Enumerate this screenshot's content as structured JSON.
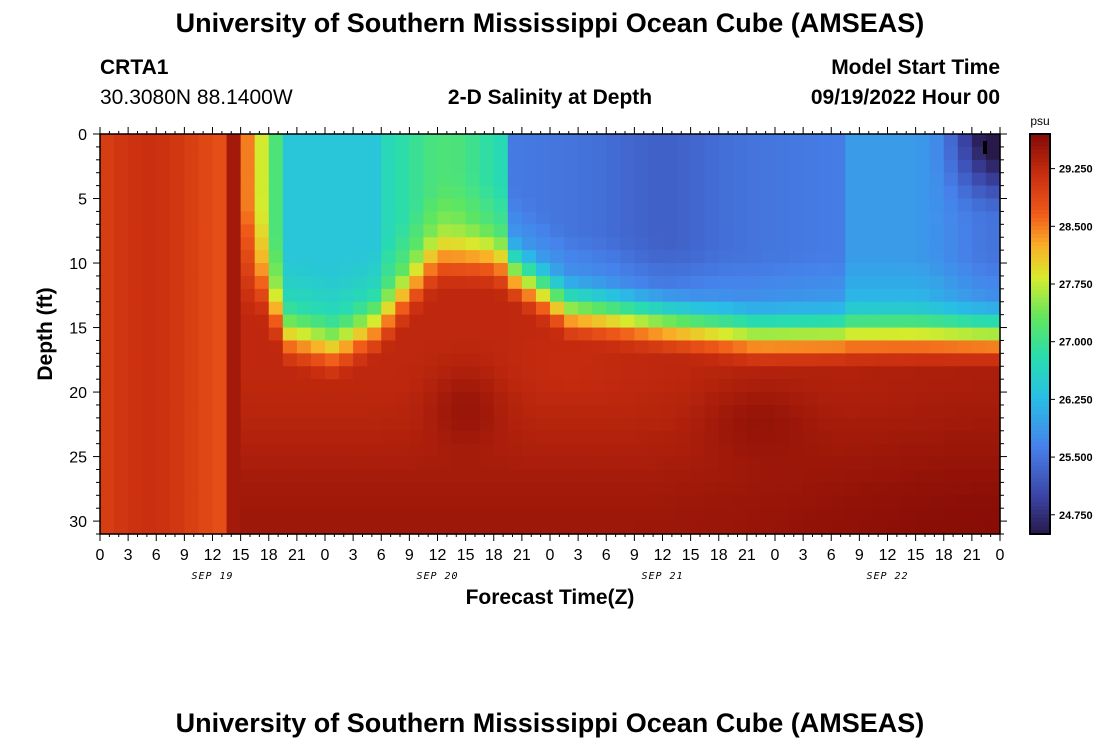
{
  "page": {
    "title": "University of Southern Mississippi Ocean Cube (AMSEAS)",
    "footer_title": "University of Southern Mississippi Ocean Cube (AMSEAS)",
    "station_id": "CRTA1",
    "station_coords": "30.3080N  88.1400W",
    "plot_title": "2-D Salinity at Depth",
    "model_start_label": "Model Start Time",
    "model_start_value": "09/19/2022 Hour 00"
  },
  "chart_data": {
    "type": "heatmap",
    "title": "2-D Salinity at Depth",
    "xlabel": "Forecast Time(Z)",
    "ylabel": "Depth (ft)",
    "x_range_hours": [
      0,
      96
    ],
    "y_range_ft": [
      0,
      31
    ],
    "y_ticks": [
      0,
      5,
      10,
      15,
      20,
      25,
      30
    ],
    "x_tick_step_hours": 3,
    "x_tick_labels": [
      "0",
      "3",
      "6",
      "9",
      "12",
      "15",
      "18",
      "21",
      "0",
      "3",
      "6",
      "9",
      "12",
      "15",
      "18",
      "21",
      "0",
      "3",
      "6",
      "9",
      "12",
      "15",
      "18",
      "21",
      "0",
      "3",
      "6",
      "9",
      "12",
      "15",
      "18",
      "21",
      "0"
    ],
    "day_labels": [
      {
        "label": "SEP 19",
        "hour": 12
      },
      {
        "label": "SEP 20",
        "hour": 36
      },
      {
        "label": "SEP 21",
        "hour": 60
      },
      {
        "label": "SEP 22",
        "hour": 84
      }
    ],
    "colorbar": {
      "unit": "psu",
      "min": 24.5,
      "max": 29.7,
      "ticks": [
        "29.250",
        "28.500",
        "27.750",
        "27.000",
        "26.250",
        "25.500",
        "24.750"
      ],
      "tick_values": [
        29.25,
        28.5,
        27.75,
        27.0,
        26.25,
        25.5,
        24.75
      ]
    },
    "grid": {
      "nx": 64,
      "ny": 31
    },
    "features": {
      "mixed_high_until_hour": 17,
      "fresh_surface_layer_start_hour": 17,
      "halocline_depth_ft": [
        {
          "hour": 17,
          "depth": 10
        },
        {
          "hour": 20,
          "depth": 14
        },
        {
          "hour": 25,
          "depth": 15
        },
        {
          "hour": 30,
          "depth": 13
        },
        {
          "hour": 36,
          "depth": 8
        },
        {
          "hour": 42,
          "depth": 8
        },
        {
          "hour": 50,
          "depth": 12
        },
        {
          "hour": 60,
          "depth": 13
        },
        {
          "hour": 70,
          "depth": 14
        },
        {
          "hour": 80,
          "depth": 14
        },
        {
          "hour": 88,
          "depth": 14
        },
        {
          "hour": 96,
          "depth": 14
        }
      ],
      "surface_min_psu": 24.7,
      "bottom_max_psu": 29.6
    }
  }
}
